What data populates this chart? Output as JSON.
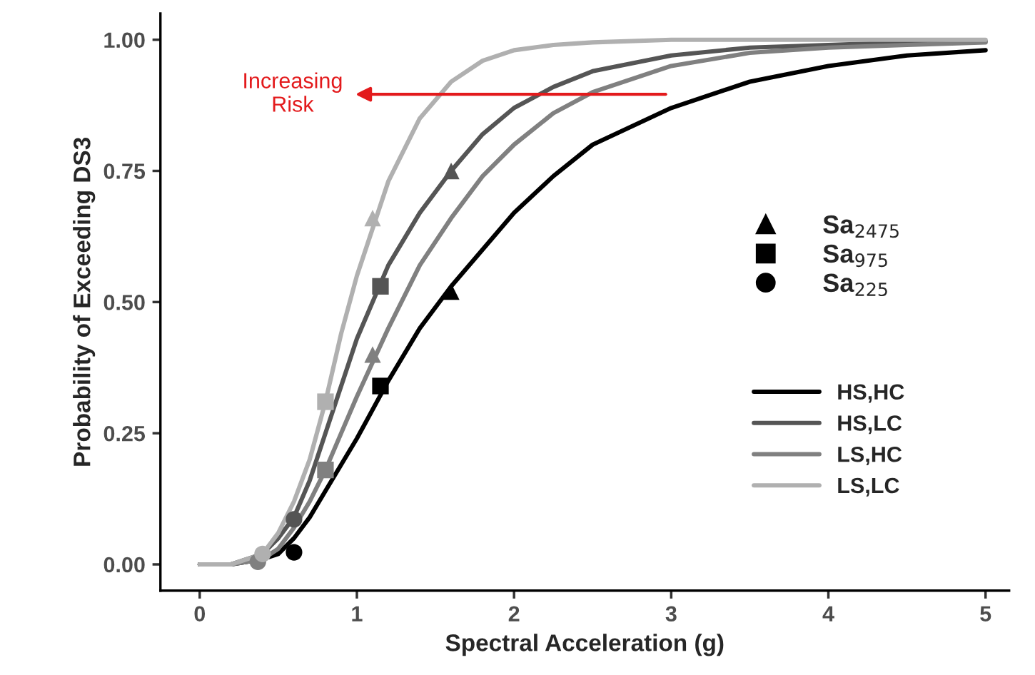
{
  "chart_data": {
    "type": "line",
    "xlabel": "Spectral Acceleration (g)",
    "ylabel": "Probability of Exceeding DS3",
    "xlim": [
      -0.25,
      5.15
    ],
    "xticks": [
      0,
      1,
      2,
      3,
      4,
      5
    ],
    "ylim": [
      -0.05,
      1.05
    ],
    "yticks": [
      {
        "value": 0,
        "label": "0.00"
      },
      {
        "value": 0.25,
        "label": "0.25"
      },
      {
        "value": 0.5,
        "label": "0.50"
      },
      {
        "value": 0.75,
        "label": "0.75"
      },
      {
        "value": 1,
        "label": "1.00"
      }
    ],
    "grid": false,
    "legend": "right",
    "line_style": "solid",
    "x": [
      0,
      0.2,
      0.4,
      0.5,
      0.6,
      0.7,
      0.8,
      0.9,
      1.0,
      1.2,
      1.4,
      1.6,
      1.8,
      2.0,
      2.25,
      2.5,
      3,
      3.5,
      4,
      4.5,
      5
    ],
    "series": [
      {
        "name": "HS,HC",
        "color": "#000000",
        "values": [
          0,
          0,
          0.01,
          0.02,
          0.05,
          0.09,
          0.14,
          0.19,
          0.24,
          0.35,
          0.45,
          0.53,
          0.6,
          0.67,
          0.74,
          0.8,
          0.87,
          0.92,
          0.95,
          0.97,
          0.98
        ]
      },
      {
        "name": "HS,LC",
        "color": "#555555",
        "values": [
          0,
          0,
          0.02,
          0.05,
          0.09,
          0.16,
          0.25,
          0.34,
          0.43,
          0.57,
          0.67,
          0.75,
          0.82,
          0.87,
          0.91,
          0.94,
          0.97,
          0.985,
          0.99,
          0.995,
          0.997
        ]
      },
      {
        "name": "LS,HC",
        "color": "#808080",
        "values": [
          0,
          0,
          0.01,
          0.03,
          0.07,
          0.12,
          0.18,
          0.25,
          0.32,
          0.45,
          0.57,
          0.66,
          0.74,
          0.8,
          0.86,
          0.9,
          0.95,
          0.975,
          0.985,
          0.99,
          0.995
        ]
      },
      {
        "name": "LS,LC",
        "color": "#b0b0b0",
        "values": [
          0,
          0,
          0.02,
          0.06,
          0.12,
          0.2,
          0.31,
          0.44,
          0.55,
          0.73,
          0.85,
          0.92,
          0.96,
          0.98,
          0.99,
          0.995,
          1,
          1,
          1,
          1,
          1
        ]
      },
      {
        "type": "scatter",
        "marker": "triangle",
        "name": "Sa$_{2475}$",
        "color": "#000000",
        "x": [
          1.6,
          1.6,
          1.1,
          1.1
        ],
        "values": [
          0.52,
          0.75,
          0.4,
          0.66
        ],
        "colors": [
          "#000000",
          "#555555",
          "#808080",
          "#b0b0b0"
        ]
      },
      {
        "type": "scatter",
        "marker": "square",
        "name": "Sa$_{975}$",
        "color": "#000000",
        "x": [
          1.15,
          1.15,
          0.8,
          0.8
        ],
        "values": [
          0.34,
          0.53,
          0.18,
          0.31
        ],
        "colors": [
          "#000000",
          "#555555",
          "#808080",
          "#b0b0b0"
        ]
      },
      {
        "type": "scatter",
        "marker": "circle",
        "name": "Sa$_{225}$",
        "color": "#000000",
        "x": [
          0.6,
          0.6,
          0.37,
          0.4
        ],
        "values": [
          0.023,
          0.086,
          0.005,
          0.02
        ],
        "colors": [
          "#000000",
          "#555555",
          "#808080",
          "#b0b0b0"
        ]
      }
    ],
    "annotations": [
      "Increasing\nRisk"
    ]
  }
}
